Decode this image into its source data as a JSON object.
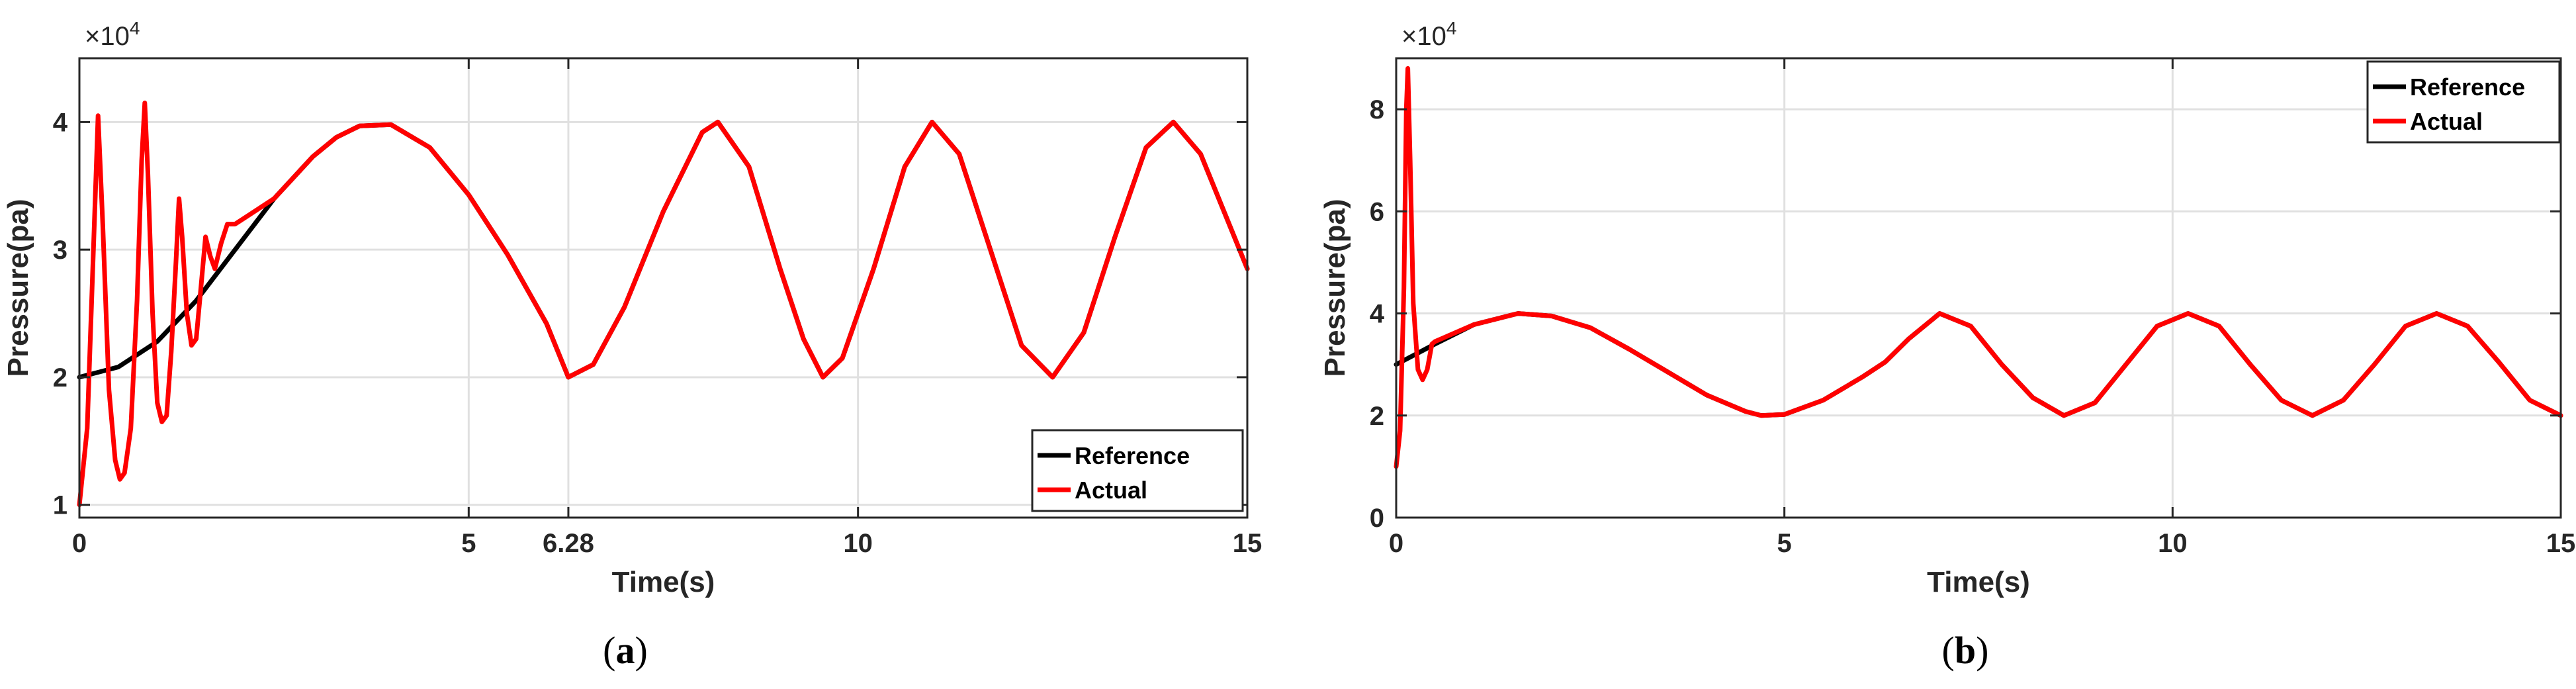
{
  "chart_data": [
    {
      "type": "line",
      "panel_label": "a",
      "xlabel": "Time(s)",
      "ylabel": "Pressure(pa)",
      "y_multiplier": "×10",
      "y_multiplier_exp": "4",
      "xlim": [
        0,
        15
      ],
      "ylim": [
        0.9,
        4.5
      ],
      "x_ticks": [
        0,
        5,
        6.28,
        10,
        15
      ],
      "x_tick_labels": [
        "0",
        "5",
        "6.28",
        "10",
        "15"
      ],
      "y_ticks": [
        1,
        2,
        3,
        4
      ],
      "y_tick_labels": [
        "1",
        "2",
        "3",
        "4"
      ],
      "grid": true,
      "legend_position": "bottom-right",
      "series": [
        {
          "name": "Reference",
          "color": "#000000",
          "points": [
            [
              0,
              2.0
            ],
            [
              0.5,
              2.08
            ],
            [
              1,
              2.28
            ],
            [
              1.5,
              2.6
            ],
            [
              2,
              3.0
            ],
            [
              2.5,
              3.4
            ],
            [
              3,
              3.73
            ],
            [
              3.3,
              3.88
            ],
            [
              3.6,
              3.97
            ],
            [
              4,
              3.98
            ],
            [
              4.5,
              3.8
            ],
            [
              5,
              3.43
            ],
            [
              5.5,
              2.96
            ],
            [
              6,
              2.42
            ],
            [
              6.28,
              2.0
            ],
            [
              6.6,
              2.1
            ],
            [
              7,
              2.55
            ],
            [
              7.5,
              3.3
            ],
            [
              8,
              3.92
            ],
            [
              8.2,
              4.0
            ],
            [
              8.6,
              3.65
            ],
            [
              9,
              2.85
            ],
            [
              9.3,
              2.3
            ],
            [
              9.55,
              2.0
            ],
            [
              9.8,
              2.15
            ],
            [
              10.2,
              2.85
            ],
            [
              10.6,
              3.65
            ],
            [
              10.95,
              4.0
            ],
            [
              11.3,
              3.75
            ],
            [
              11.7,
              3.0
            ],
            [
              12.1,
              2.25
            ],
            [
              12.5,
              2.0
            ],
            [
              12.9,
              2.35
            ],
            [
              13.3,
              3.1
            ],
            [
              13.7,
              3.8
            ],
            [
              14.05,
              4.0
            ],
            [
              14.4,
              3.75
            ],
            [
              14.7,
              3.3
            ],
            [
              15,
              2.85
            ]
          ]
        },
        {
          "name": "Actual",
          "color": "#ff0000",
          "points": [
            [
              0,
              1.0
            ],
            [
              0.1,
              1.6
            ],
            [
              0.18,
              3.0
            ],
            [
              0.24,
              4.05
            ],
            [
              0.3,
              3.2
            ],
            [
              0.38,
              1.9
            ],
            [
              0.46,
              1.35
            ],
            [
              0.52,
              1.2
            ],
            [
              0.58,
              1.25
            ],
            [
              0.66,
              1.6
            ],
            [
              0.74,
              2.6
            ],
            [
              0.8,
              3.7
            ],
            [
              0.84,
              4.15
            ],
            [
              0.88,
              3.6
            ],
            [
              0.94,
              2.5
            ],
            [
              1.0,
              1.8
            ],
            [
              1.06,
              1.65
            ],
            [
              1.12,
              1.7
            ],
            [
              1.18,
              2.2
            ],
            [
              1.24,
              2.9
            ],
            [
              1.28,
              3.4
            ],
            [
              1.32,
              3.1
            ],
            [
              1.38,
              2.5
            ],
            [
              1.44,
              2.25
            ],
            [
              1.5,
              2.3
            ],
            [
              1.56,
              2.7
            ],
            [
              1.62,
              3.1
            ],
            [
              1.68,
              2.95
            ],
            [
              1.74,
              2.85
            ],
            [
              1.82,
              3.05
            ],
            [
              1.9,
              3.2
            ],
            [
              2,
              3.2
            ],
            [
              2.5,
              3.4
            ],
            [
              3,
              3.73
            ],
            [
              3.3,
              3.88
            ],
            [
              3.6,
              3.97
            ],
            [
              4,
              3.98
            ],
            [
              4.5,
              3.8
            ],
            [
              5,
              3.43
            ],
            [
              5.5,
              2.96
            ],
            [
              6,
              2.42
            ],
            [
              6.28,
              2.0
            ],
            [
              6.6,
              2.1
            ],
            [
              7,
              2.55
            ],
            [
              7.5,
              3.3
            ],
            [
              8,
              3.92
            ],
            [
              8.2,
              4.0
            ],
            [
              8.6,
              3.65
            ],
            [
              9,
              2.85
            ],
            [
              9.3,
              2.3
            ],
            [
              9.55,
              2.0
            ],
            [
              9.8,
              2.15
            ],
            [
              10.2,
              2.85
            ],
            [
              10.6,
              3.65
            ],
            [
              10.95,
              4.0
            ],
            [
              11.3,
              3.75
            ],
            [
              11.7,
              3.0
            ],
            [
              12.1,
              2.25
            ],
            [
              12.5,
              2.0
            ],
            [
              12.9,
              2.35
            ],
            [
              13.3,
              3.1
            ],
            [
              13.7,
              3.8
            ],
            [
              14.05,
              4.0
            ],
            [
              14.4,
              3.75
            ],
            [
              14.7,
              3.3
            ],
            [
              15,
              2.85
            ]
          ]
        }
      ]
    },
    {
      "type": "line",
      "panel_label": "b",
      "xlabel": "Time(s)",
      "ylabel": "Pressure(pa)",
      "y_multiplier": "×10",
      "y_multiplier_exp": "4",
      "xlim": [
        0,
        15
      ],
      "ylim": [
        0,
        9
      ],
      "x_ticks": [
        0,
        5,
        10,
        15
      ],
      "x_tick_labels": [
        "0",
        "5",
        "10",
        "15"
      ],
      "y_ticks": [
        0,
        2,
        4,
        6,
        8
      ],
      "y_tick_labels": [
        "0",
        "2",
        "4",
        "6",
        "8"
      ],
      "grid": true,
      "legend_position": "top-right",
      "series": [
        {
          "name": "Reference",
          "color": "#000000",
          "points": [
            [
              0,
              3.0
            ],
            [
              0.5,
              3.4
            ],
            [
              1,
              3.78
            ],
            [
              1.57,
              4.0
            ],
            [
              2,
              3.95
            ],
            [
              2.5,
              3.72
            ],
            [
              3,
              3.3
            ],
            [
              3.5,
              2.85
            ],
            [
              4,
              2.4
            ],
            [
              4.5,
              2.08
            ],
            [
              4.7,
              2.0
            ],
            [
              5,
              2.02
            ],
            [
              5.5,
              2.3
            ],
            [
              6,
              2.75
            ],
            [
              6.3,
              3.05
            ],
            [
              6.6,
              3.5
            ],
            [
              7.0,
              4.0
            ],
            [
              7.4,
              3.75
            ],
            [
              7.8,
              3.0
            ],
            [
              8.2,
              2.35
            ],
            [
              8.6,
              2.0
            ],
            [
              9.0,
              2.25
            ],
            [
              9.4,
              3.0
            ],
            [
              9.8,
              3.75
            ],
            [
              10.2,
              4.0
            ],
            [
              10.6,
              3.75
            ],
            [
              11.0,
              3.0
            ],
            [
              11.4,
              2.3
            ],
            [
              11.8,
              2.0
            ],
            [
              12.2,
              2.3
            ],
            [
              12.6,
              3.0
            ],
            [
              13.0,
              3.75
            ],
            [
              13.4,
              4.0
            ],
            [
              13.8,
              3.75
            ],
            [
              14.2,
              3.05
            ],
            [
              14.6,
              2.3
            ],
            [
              15,
              2.0
            ]
          ]
        },
        {
          "name": "Actual",
          "color": "#ff0000",
          "points": [
            [
              0,
              1.0
            ],
            [
              0.05,
              1.7
            ],
            [
              0.1,
              4.5
            ],
            [
              0.13,
              8.0
            ],
            [
              0.15,
              8.8
            ],
            [
              0.18,
              7.0
            ],
            [
              0.22,
              4.2
            ],
            [
              0.28,
              2.9
            ],
            [
              0.34,
              2.7
            ],
            [
              0.4,
              2.9
            ],
            [
              0.46,
              3.4
            ],
            [
              0.5,
              3.45
            ],
            [
              1,
              3.78
            ],
            [
              1.57,
              4.0
            ],
            [
              2,
              3.95
            ],
            [
              2.5,
              3.72
            ],
            [
              3,
              3.3
            ],
            [
              3.5,
              2.85
            ],
            [
              4,
              2.4
            ],
            [
              4.5,
              2.08
            ],
            [
              4.7,
              2.0
            ],
            [
              5,
              2.02
            ],
            [
              5.5,
              2.3
            ],
            [
              6,
              2.75
            ],
            [
              6.3,
              3.05
            ],
            [
              6.6,
              3.5
            ],
            [
              7.0,
              4.0
            ],
            [
              7.4,
              3.75
            ],
            [
              7.8,
              3.0
            ],
            [
              8.2,
              2.35
            ],
            [
              8.6,
              2.0
            ],
            [
              9.0,
              2.25
            ],
            [
              9.4,
              3.0
            ],
            [
              9.8,
              3.75
            ],
            [
              10.2,
              4.0
            ],
            [
              10.6,
              3.75
            ],
            [
              11.0,
              3.0
            ],
            [
              11.4,
              2.3
            ],
            [
              11.8,
              2.0
            ],
            [
              12.2,
              2.3
            ],
            [
              12.6,
              3.0
            ],
            [
              13.0,
              3.75
            ],
            [
              13.4,
              4.0
            ],
            [
              13.8,
              3.75
            ],
            [
              14.2,
              3.05
            ],
            [
              14.6,
              2.3
            ],
            [
              15,
              2.0
            ]
          ]
        }
      ]
    }
  ]
}
